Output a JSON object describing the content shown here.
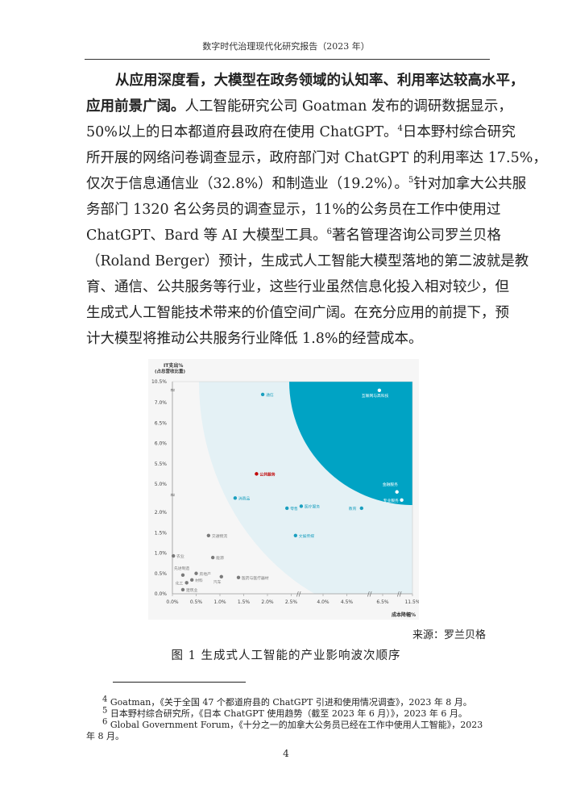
{
  "header": "数字时代治理现代化研究报告（2023 年）",
  "paragraph": {
    "bold": [
      "从应用深度看，大模型在政务领域的认知率、利用率达较高水平，",
      "应用前景广阔。"
    ],
    "lines": [
      "人工智能研究公司 Goatman 发布的调研数据显示，",
      "50%以上的日本都道府县政府在使用 ChatGPT。",
      "4",
      "日本野村综合研究",
      "所开展的网络问卷调查显示，政府部门对 ChatGPT 的利用率达 17.5%，",
      "仅次于信息通信业（32.8%）和制造业（19.2%）。",
      "5",
      "针对加拿大公共服",
      "务部门 1320 名公务员的调查显示，11%的公务员在工作中使用过",
      "ChatGPT、Bard 等 AI 大模型工具。",
      "6",
      "著名管理咨询公司罗兰贝格",
      "（Roland Berger）预计，生成式人工智能大模型落地的第二波就是教",
      "育、通信、公共服务等行业，这些行业虽然信息化投入相对较少，但",
      "生成式人工智能技术带来的价值空间广阔。在充分应用的前提下，预",
      "计大模型将推动公共服务行业降低 1.8%的经营成本。"
    ]
  },
  "chart_data": {
    "type": "scatter",
    "ylabel": "IT支出%",
    "ylabel2": "(占总营收比重)",
    "xlabel": "成本降幅%",
    "x_ticks": [
      "0.0%",
      "0.5%",
      "1.0%",
      "1.5%",
      "2.0%",
      "2.5%",
      "4.0%",
      "4.5%",
      "6.5%",
      "11.5%"
    ],
    "y_ticks": [
      "0.0%",
      "0.5%",
      "1.0%",
      "1.5%",
      "2.0%",
      "5.0%",
      "5.5%",
      "6.0%",
      "6.5%",
      "7.0%",
      "10.5%"
    ],
    "axis_breaks": true,
    "grid": false,
    "colors": {
      "dark_zone": "#00a3c4",
      "light_zone": "#e4f1f5",
      "background": "#f6f6f6",
      "teal": "#1a9fbf",
      "grey": "#7a7a7a",
      "highlight": "#c00000"
    },
    "points": [
      {
        "name": "通信",
        "x": 1.9,
        "y": 7.2,
        "group": "second"
      },
      {
        "name": "互联网与高科技",
        "x": 6.43,
        "y": 7.3,
        "group": "first"
      },
      {
        "name": "公共服务",
        "x": 1.77,
        "y": 5.25,
        "group": "highlight"
      },
      {
        "name": "金融服务",
        "x": 6.8,
        "y": 2.5,
        "group": "first"
      },
      {
        "name": "专业服务",
        "x": 6.9,
        "y": 2.3,
        "group": "first"
      },
      {
        "name": "消费品",
        "x": 1.32,
        "y": 2.35,
        "group": "second"
      },
      {
        "name": "零售",
        "x": 2.41,
        "y": 2.1,
        "group": "second"
      },
      {
        "name": "医疗服务",
        "x": 2.71,
        "y": 2.15,
        "group": "second"
      },
      {
        "name": "教育",
        "x": 4.81,
        "y": 2.1,
        "group": "second"
      },
      {
        "name": "文娱传媒",
        "x": 2.59,
        "y": 1.43,
        "group": "second"
      },
      {
        "name": "交通物流",
        "x": 0.76,
        "y": 1.43,
        "group": "third"
      },
      {
        "name": "农业",
        "x": 0.02,
        "y": 0.93,
        "group": "third"
      },
      {
        "name": "能源",
        "x": 0.85,
        "y": 0.89,
        "group": "third"
      },
      {
        "name": "先进制造",
        "x": 0.22,
        "y": 0.46,
        "group": "third"
      },
      {
        "name": "房地产",
        "x": 0.5,
        "y": 0.5,
        "group": "third"
      },
      {
        "name": "材料",
        "x": 0.41,
        "y": 0.34,
        "group": "third"
      },
      {
        "name": "化工",
        "x": 0.3,
        "y": 0.27,
        "group": "third"
      },
      {
        "name": "汽车",
        "x": 1.03,
        "y": 0.42,
        "group": "third"
      },
      {
        "name": "医药与医疗器材",
        "x": 1.39,
        "y": 0.4,
        "group": "third"
      },
      {
        "name": "建筑业",
        "x": 0.22,
        "y": 0.1,
        "group": "third"
      }
    ]
  },
  "source": "来源：罗兰贝格",
  "caption": "图 1  生成式人工智能的产业影响波次顺序",
  "footnotes": [
    {
      "mark": "4",
      "text": "Goatman，《关于全国 47 个都道府县的 ChatGPT 引进和使用情况调查》，2023 年 8 月。"
    },
    {
      "mark": "5",
      "text": "日本野村综合研究所，《日本 ChatGPT 使用趋势（截至 2023 年 6 月）》，2023 年 6 月。"
    },
    {
      "mark": "6",
      "text": "Global Government Forum，《十分之一的加拿大公务员已经在工作中使用人工智能》，2023 年 8 月。"
    }
  ],
  "page_number": "4"
}
